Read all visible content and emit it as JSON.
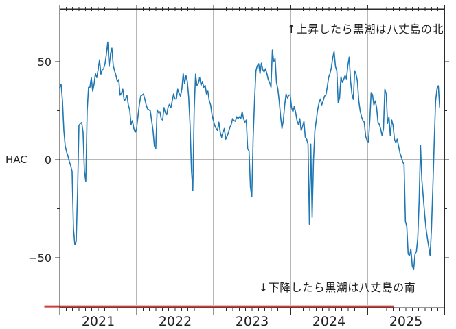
{
  "figure": {
    "ylabel": "HAC"
  },
  "chart_data": {
    "type": "line",
    "title": "",
    "xlabel": "",
    "ylabel": "HAC",
    "x_unit": "year",
    "xlim": [
      2021.0,
      2026.0
    ],
    "ylim": [
      -75.5,
      77.0
    ],
    "x_tick_labels": [
      "2021",
      "2022",
      "2023",
      "2024",
      "2025"
    ],
    "x_year_gridlines": [
      2022,
      2023,
      2024,
      2025
    ],
    "x_minor_tick_interval_months": 1,
    "grid_horizontal_at": [
      0
    ],
    "y_major_ticks": [
      50,
      0,
      -50
    ],
    "y_major_tick_labels": [
      "50",
      "0",
      "−50"
    ],
    "y_minor_ticks": [
      25,
      -25
    ],
    "legend": "none",
    "line_color": "#1f77b4",
    "grid_color": "#6e6e6e",
    "spine_color": "#2b2b2b",
    "series": [
      {
        "name": "HAC",
        "x_start": 2021.0,
        "x_end": 2025.94,
        "sampling": "uniform",
        "values": [
          37,
          38.5,
          30,
          15,
          7,
          4,
          2,
          -1,
          -3,
          -6,
          -35,
          -43.4,
          -41.5,
          -16,
          17.5,
          18.5,
          19,
          14,
          -6,
          -11,
          25,
          37,
          37,
          42,
          35,
          38.5,
          44,
          42,
          46,
          51,
          43.7,
          46,
          46.5,
          49,
          54,
          60,
          47.6,
          54,
          57,
          48,
          45.4,
          43,
          40,
          41,
          33,
          34,
          36,
          30,
          31,
          33,
          28,
          25.5,
          18,
          20,
          16,
          14,
          16,
          22,
          28,
          32.5,
          33,
          33.6,
          31,
          28,
          26,
          25.5,
          25,
          20,
          15,
          7,
          5.6,
          25.5,
          24,
          24.5,
          21,
          20.3,
          26.6,
          24,
          23,
          27,
          28.3,
          26.6,
          30,
          33.6,
          31,
          31,
          36,
          34,
          32.5,
          36,
          44,
          38.8,
          43,
          40,
          32,
          18,
          -5,
          -15.7,
          25,
          43.7,
          38,
          39,
          42,
          38,
          40,
          37,
          38,
          33.6,
          35,
          30,
          28,
          23,
          20,
          17.5,
          16,
          15,
          19.2,
          14,
          11.5,
          14,
          16,
          10.5,
          12,
          14,
          16.5,
          18,
          21,
          20,
          19.6,
          22,
          21,
          22,
          21,
          24.5,
          21,
          19.2,
          20.3,
          5.6,
          4.5,
          -14,
          -18.8,
          11.5,
          30,
          45.4,
          48,
          49,
          44,
          49.3,
          46,
          44.8,
          46.5,
          44,
          41,
          39.5,
          37,
          56,
          50,
          51.7,
          39.5,
          36,
          30,
          22,
          16,
          20,
          28,
          33.6,
          31.5,
          33,
          33.2,
          26.6,
          24.5,
          27.3,
          24,
          20,
          18,
          21,
          15,
          17,
          19.6,
          11.5,
          10.5,
          8,
          -32.9,
          8,
          -29.4,
          0,
          15,
          20,
          25.5,
          29,
          31,
          28,
          30,
          32.5,
          33,
          37,
          42,
          44,
          47,
          52,
          55.2,
          47.6,
          45.4,
          29,
          31.5,
          42.4,
          39.5,
          41,
          43,
          41.3,
          48,
          52.4,
          40.2,
          33.6,
          30.8,
          45.4,
          43.7,
          40.2,
          30,
          25,
          22,
          20,
          19.2,
          12,
          10,
          9.1,
          19.6,
          34.3,
          33.2,
          28,
          30,
          26.6,
          19.2,
          18,
          15.7,
          12.2,
          16,
          36,
          33.6,
          18.5,
          22,
          12.2,
          20.3,
          17.5,
          10.5,
          8.7,
          10.5,
          7,
          3.5,
          1.5,
          -1,
          -2.4,
          -31.5,
          -34,
          -48,
          -49,
          -45.5,
          -54.2,
          -56,
          -48,
          -46.9,
          -39.9,
          -21,
          7.3,
          -10.5,
          -18.9,
          -27.6,
          -35,
          -39.9,
          -44.4,
          -49,
          -35,
          -14,
          9.1,
          30,
          36,
          37.8,
          26.6
        ]
      }
    ],
    "red_bottom_line": {
      "from_year": 2020.8,
      "to_year": 2025.34,
      "position": "bottom-axis",
      "color": "#c9413c",
      "halo_color": "#f0bcba"
    },
    "annotations": [
      {
        "text": "↑上昇したら黒潮は八丈島の北",
        "position": "top-right-inside"
      },
      {
        "text": "↓下降したら黒潮は八丈島の南",
        "position": "bottom-center-inside"
      }
    ]
  }
}
